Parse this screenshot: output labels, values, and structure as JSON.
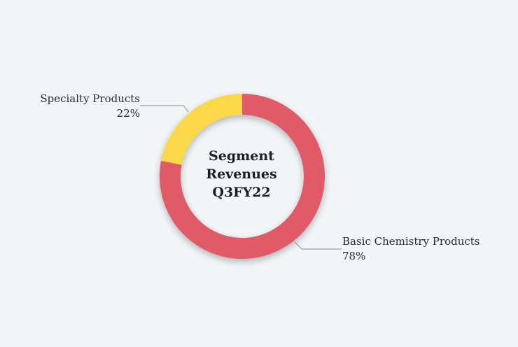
{
  "chart_data": {
    "type": "pie",
    "style": "donut",
    "title_lines": [
      "Segment",
      "Revenues",
      "Q3FY22"
    ],
    "slices": [
      {
        "label": "Basic Chemistry Products",
        "value": 78,
        "value_label": "78%",
        "color": "#e05a68"
      },
      {
        "label": "Specialty Products",
        "value": 22,
        "value_label": "22%",
        "color": "#fbd84a"
      }
    ]
  }
}
